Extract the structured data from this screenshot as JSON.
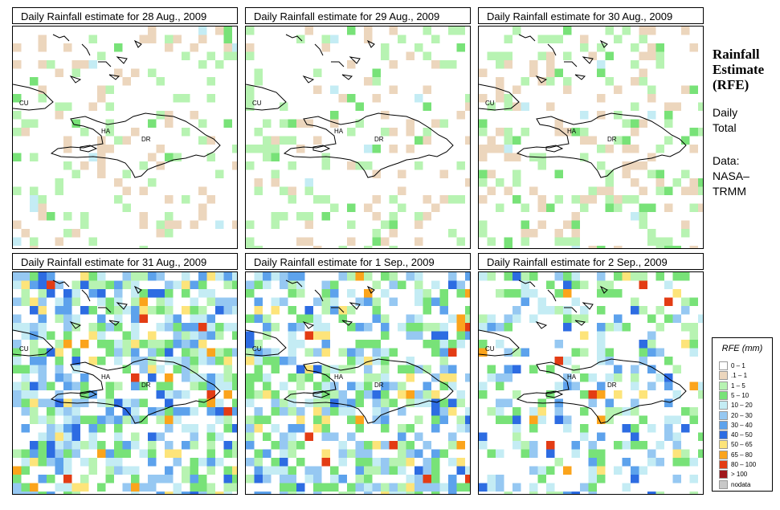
{
  "side": {
    "title_lines": [
      "Rainfall",
      "Estimate",
      "(RFE)"
    ],
    "period_lines": [
      "Daily",
      "Total"
    ],
    "source_lines": [
      "Data:",
      "NASA–",
      "TRMM"
    ]
  },
  "legend": {
    "title": "RFE (mm)",
    "classes": [
      {
        "label": "0 – 1",
        "color": "#ffffff"
      },
      {
        "label": ".1 – 1",
        "color": "#ecd6bd"
      },
      {
        "label": "1 – 5",
        "color": "#b7f3b2"
      },
      {
        "label": "5 – 10",
        "color": "#78e278"
      },
      {
        "label": "10 – 20",
        "color": "#c4ecf4"
      },
      {
        "label": "20 – 30",
        "color": "#96c8f2"
      },
      {
        "label": "30 – 40",
        "color": "#5da2ec"
      },
      {
        "label": "40 – 50",
        "color": "#2d6ce2"
      },
      {
        "label": "50 – 65",
        "color": "#fde47a"
      },
      {
        "label": "65 – 80",
        "color": "#fba41c"
      },
      {
        "label": "80 – 100",
        "color": "#e33c14"
      },
      {
        "label": "> 100",
        "color": "#a0181c"
      },
      {
        "label": "nodata",
        "color": "#c8c8c8"
      }
    ]
  },
  "map_labels": {
    "cu": "CU",
    "ha": "HA",
    "dr": "DR"
  },
  "panels": [
    {
      "title": "Daily Rainfall estimate for  28 Aug., 2009",
      "intensity": 0.25
    },
    {
      "title": "Daily Rainfall estimate for  29 Aug., 2009",
      "intensity": 0.3
    },
    {
      "title": "Daily Rainfall estimate for  30 Aug., 2009",
      "intensity": 0.4
    },
    {
      "title": "Daily Rainfall estimate for  31 Aug., 2009",
      "intensity": 0.85
    },
    {
      "title": "Daily Rainfall estimate for  1 Sep., 2009",
      "intensity": 0.8
    },
    {
      "title": "Daily Rainfall estimate for  2 Sep., 2009",
      "intensity": 0.5
    }
  ]
}
